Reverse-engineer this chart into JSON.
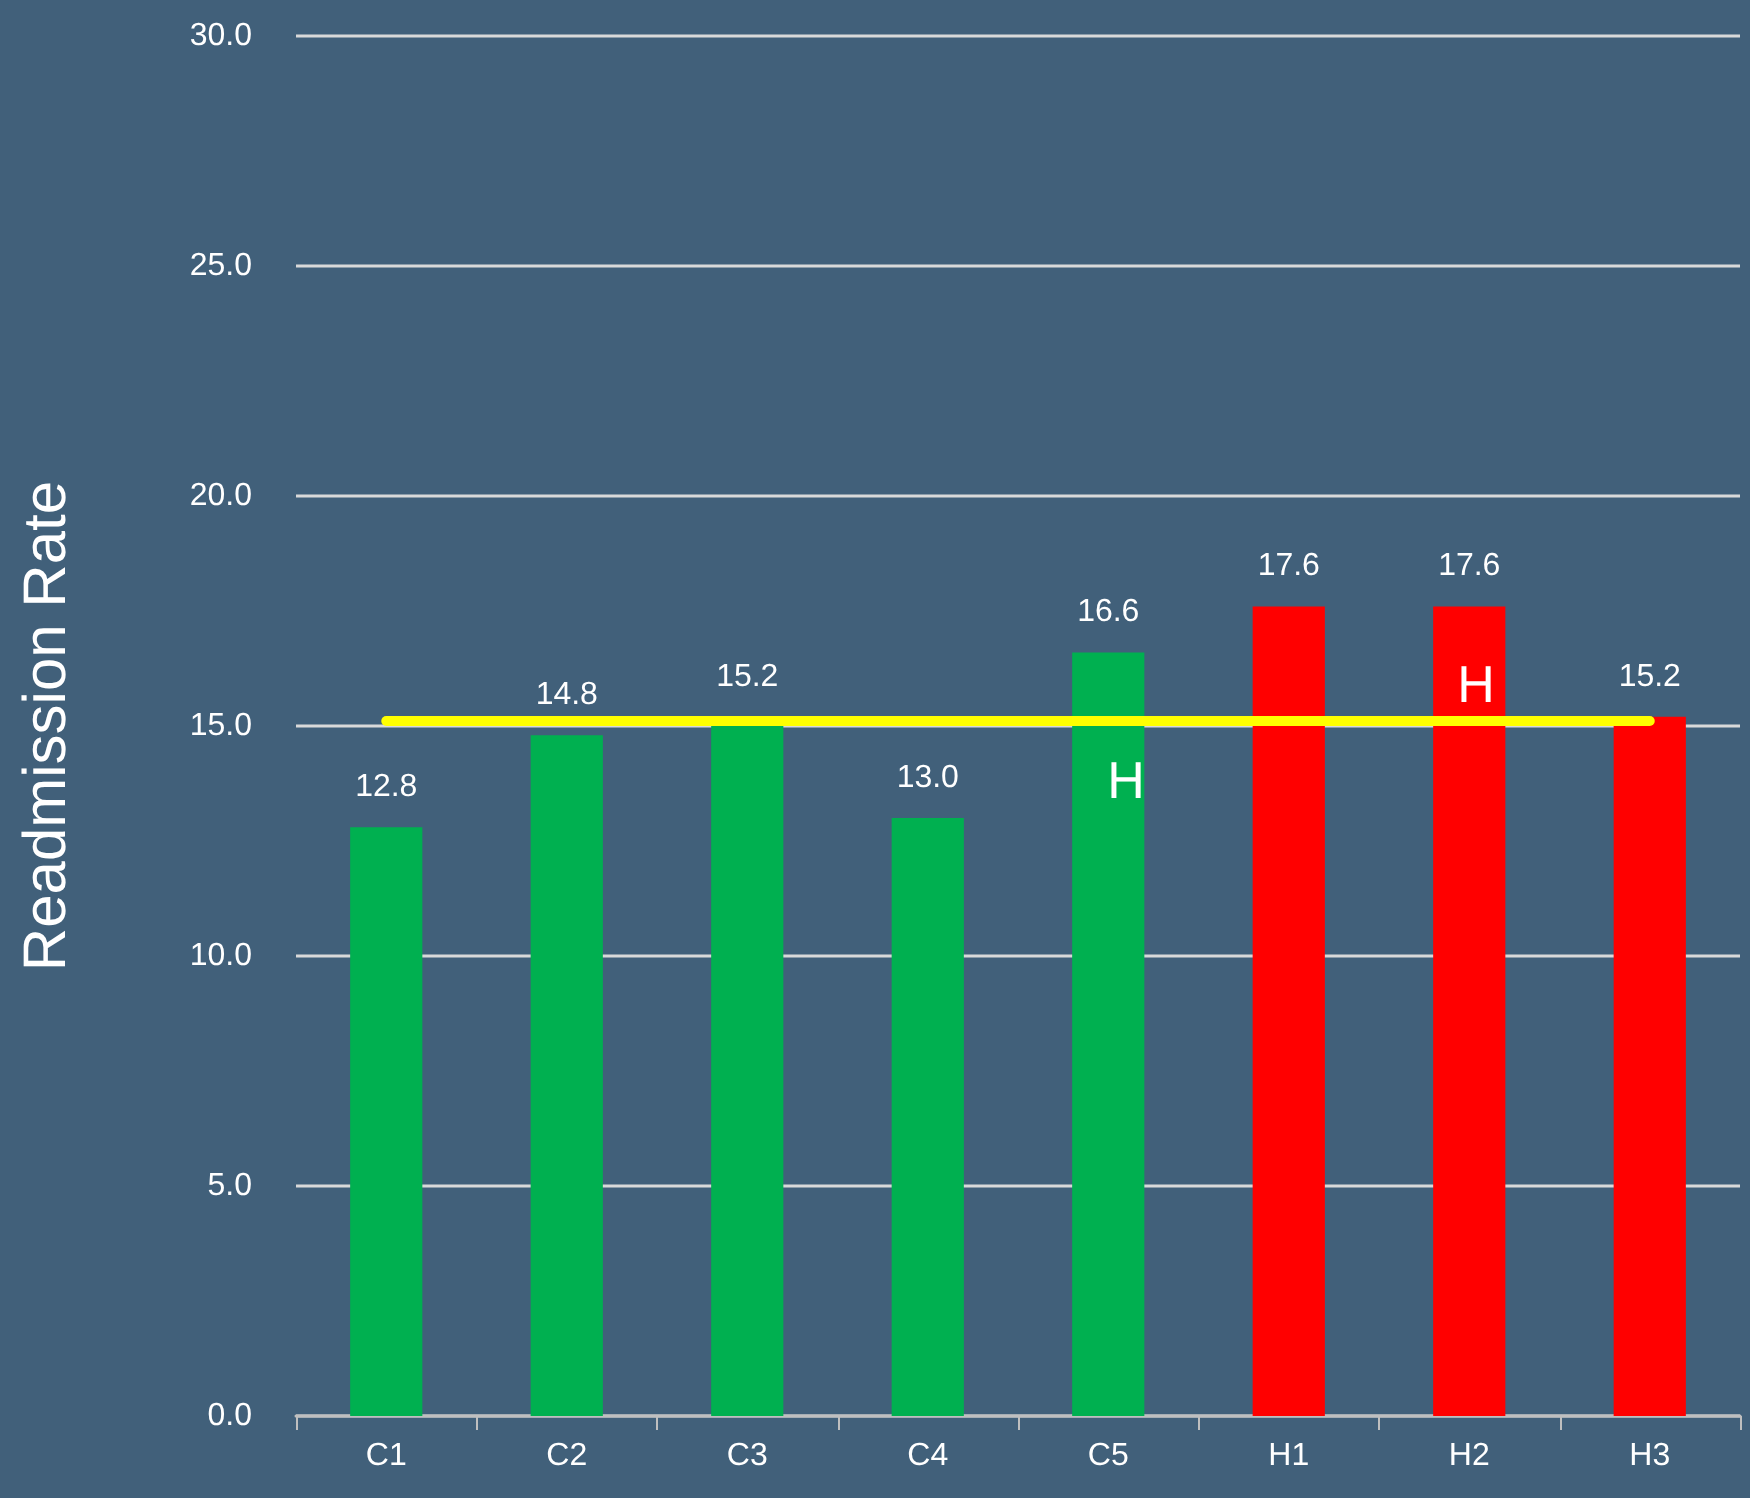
{
  "chart_data": {
    "type": "bar",
    "ylabel": "Readmission Rate",
    "categories": [
      "C1",
      "C2",
      "C3",
      "C4",
      "C5",
      "H1",
      "H2",
      "H3"
    ],
    "values": [
      12.8,
      14.8,
      15.2,
      13.0,
      16.6,
      17.6,
      17.6,
      15.2
    ],
    "colors": [
      "#00b050",
      "#00b050",
      "#00b050",
      "#00b050",
      "#00b050",
      "#ff0000",
      "#ff0000",
      "#ff0000"
    ],
    "ylim": [
      0,
      30
    ],
    "yticks": [
      {
        "value": 0,
        "label": "0.0"
      },
      {
        "value": 5,
        "label": "5.0"
      },
      {
        "value": 10,
        "label": "10.0"
      },
      {
        "value": 15,
        "label": "15.0"
      },
      {
        "value": 20,
        "label": "20.0"
      },
      {
        "value": 25,
        "label": "25.0"
      },
      {
        "value": 30,
        "label": "30.0"
      }
    ],
    "grid": "y",
    "value_labels": [
      "12.8",
      "14.8",
      "15.2",
      "13.0",
      "16.6",
      "17.6",
      "17.6",
      "15.2"
    ],
    "ref_lines": [
      {
        "axis": "y",
        "value": 15.1,
        "color": "#ffff00"
      }
    ],
    "annotations": [
      "H",
      "H"
    ]
  }
}
